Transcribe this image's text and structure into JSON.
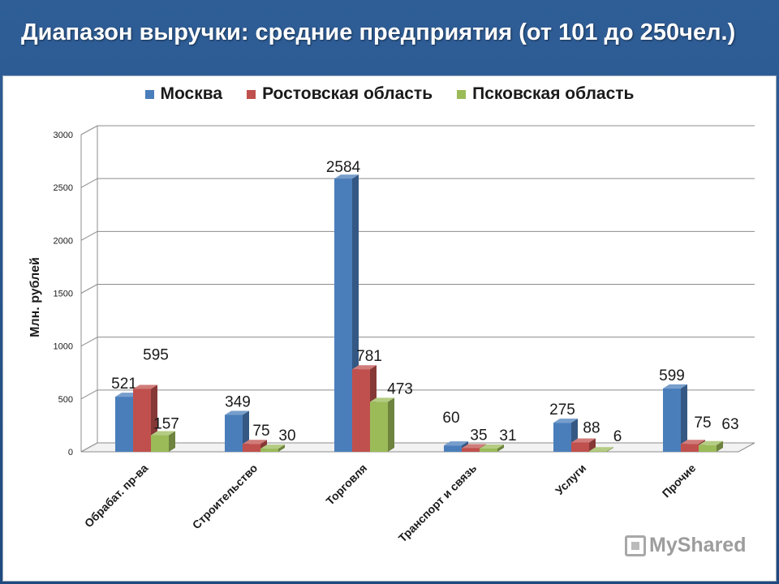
{
  "title": "Диапазон выручки: средние предприятия (от 101 до 250чел.)",
  "watermark": "MyShared",
  "chart_data": {
    "type": "bar",
    "categories": [
      "Обрабат. пр-ва",
      "Строительство",
      "Торговля",
      "Транспорт и связь",
      "Услуги",
      "Прочие"
    ],
    "series": [
      {
        "name": "Москва",
        "color": "#4a7ebb",
        "values": [
          521,
          349,
          2584,
          60,
          275,
          599
        ]
      },
      {
        "name": "Ростовская область",
        "color": "#c0504d",
        "values": [
          595,
          75,
          781,
          35,
          88,
          75
        ]
      },
      {
        "name": "Псковская область",
        "color": "#9bbb59",
        "values": [
          157,
          30,
          473,
          31,
          6,
          63
        ]
      }
    ],
    "ylabel": "Млн. рублей",
    "xlabel": "",
    "ylim": [
      0,
      3000
    ],
    "yticks": [
      0,
      500,
      1000,
      1500,
      2000,
      2500,
      3000
    ],
    "grid": true,
    "legend_position": "top"
  }
}
